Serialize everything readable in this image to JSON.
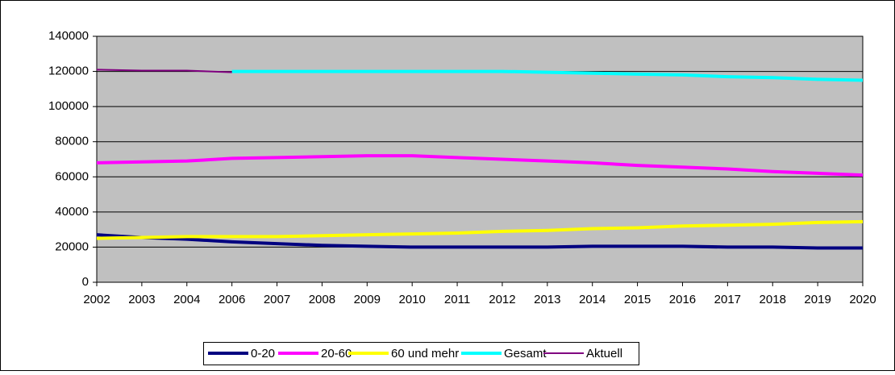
{
  "chart_data": {
    "type": "line",
    "categories": [
      "2002",
      "2003",
      "2004",
      "2006",
      "2007",
      "2008",
      "2009",
      "2010",
      "2011",
      "2012",
      "2013",
      "2014",
      "2015",
      "2016",
      "2017",
      "2018",
      "2019",
      "2020"
    ],
    "series": [
      {
        "name": "0-20",
        "color": "#000080",
        "values": [
          27000,
          25500,
          24500,
          23000,
          22000,
          21000,
          20500,
          20000,
          20000,
          20000,
          20000,
          20500,
          20500,
          20500,
          20000,
          20000,
          19500,
          19500
        ]
      },
      {
        "name": "20-60",
        "color": "#ff00ff",
        "values": [
          68000,
          68500,
          69000,
          70500,
          71000,
          71500,
          72000,
          72000,
          71000,
          70000,
          69000,
          68000,
          66500,
          65500,
          64500,
          63000,
          62000,
          61000
        ]
      },
      {
        "name": "60 und mehr",
        "color": "#ffff00",
        "values": [
          25000,
          25500,
          26000,
          26000,
          26000,
          26500,
          27000,
          27500,
          28000,
          29000,
          29500,
          30500,
          31000,
          32000,
          32500,
          33000,
          34000,
          34500
        ]
      },
      {
        "name": "Gesamt",
        "color": "#00ffff",
        "values": [
          null,
          null,
          null,
          120000,
          120000,
          120000,
          120000,
          120000,
          120000,
          120000,
          119500,
          119000,
          118500,
          118000,
          117000,
          116500,
          115500,
          115000
        ]
      },
      {
        "name": "Aktuell",
        "color": "#800080",
        "values": [
          121000,
          120500,
          120500,
          119500,
          null,
          null,
          null,
          null,
          null,
          null,
          null,
          null,
          null,
          null,
          null,
          null,
          null,
          null
        ]
      }
    ],
    "ylim": [
      0,
      140000
    ],
    "yticks": [
      0,
      20000,
      40000,
      60000,
      80000,
      100000,
      120000,
      140000
    ],
    "grid": true,
    "legend": "bottom"
  }
}
